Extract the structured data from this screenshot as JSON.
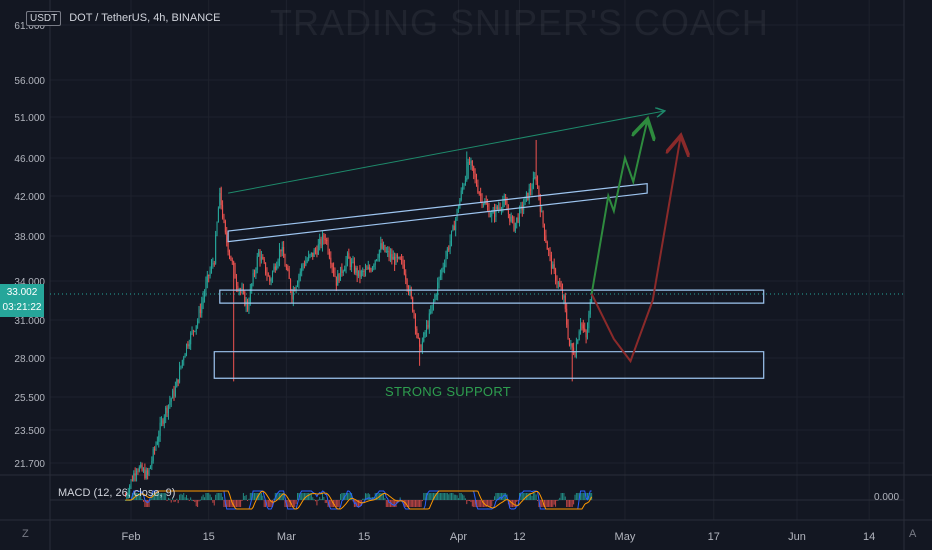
{
  "header": {
    "currency_badge": "USDT",
    "symbol": "DOT / TetherUS, 4h, BINANCE"
  },
  "watermark": "TRADING SNIPER'S COACH",
  "price_tag": {
    "price": "33.002",
    "countdown": "03:21:22"
  },
  "annotation": "STRONG SUPPORT",
  "macd": {
    "label": "MACD (12, 26, close, 9)",
    "value": "0.000"
  },
  "corner": {
    "left": "Z",
    "right": "A"
  },
  "colors": {
    "up": "#26a69a",
    "down": "#ef5350",
    "box": "#9ec5f0",
    "trend": "#1e8a6b",
    "green_arrow": "#2e8b3e",
    "red_arrow": "#8b2a2a",
    "macd_line": "#2962ff",
    "signal_line": "#ff9800"
  },
  "chart_data": {
    "type": "candlestick",
    "ylim": [
      19.5,
      62.0
    ],
    "yticks": [
      61.0,
      56.0,
      51.0,
      46.0,
      42.0,
      38.0,
      34.0,
      31.0,
      28.0,
      25.5,
      23.5,
      21.7
    ],
    "yticks_text": [
      "61.000",
      "56.000",
      "51.000",
      "46.000",
      "42.000",
      "38.000",
      "34.000",
      "31.000",
      "28.000",
      "25.500",
      "23.500",
      "21.700"
    ],
    "x_range_days": [
      0,
      136
    ],
    "xticks": [
      {
        "label": "Feb",
        "day": 0
      },
      {
        "label": "15",
        "day": 14
      },
      {
        "label": "Mar",
        "day": 28
      },
      {
        "label": "15",
        "day": 42
      },
      {
        "label": "Apr",
        "day": 59
      },
      {
        "label": "12",
        "day": 70
      },
      {
        "label": "May",
        "day": 89
      },
      {
        "label": "17",
        "day": 105
      },
      {
        "label": "Jun",
        "day": 120
      },
      {
        "label": "14",
        "day": 133
      }
    ],
    "price_anchors": [
      [
        -1,
        19.9
      ],
      [
        1,
        21.5
      ],
      [
        3,
        21.0
      ],
      [
        6,
        24.5
      ],
      [
        8,
        26.0
      ],
      [
        10,
        29.0
      ],
      [
        12,
        31.0
      ],
      [
        14,
        34.5
      ],
      [
        15,
        36.0
      ],
      [
        16,
        42.3
      ],
      [
        17,
        38.0
      ],
      [
        18,
        36.0
      ],
      [
        19,
        34.0
      ],
      [
        21,
        32.0
      ],
      [
        23,
        36.5
      ],
      [
        25,
        34.0
      ],
      [
        27,
        37.0
      ],
      [
        29,
        33.0
      ],
      [
        31,
        35.5
      ],
      [
        33,
        36.5
      ],
      [
        35,
        38.0
      ],
      [
        37,
        34.0
      ],
      [
        39,
        36.0
      ],
      [
        41,
        34.5
      ],
      [
        43,
        35.0
      ],
      [
        45,
        37.0
      ],
      [
        47,
        36.0
      ],
      [
        49,
        35.5
      ],
      [
        51,
        31.5
      ],
      [
        52,
        28.5
      ],
      [
        54,
        31.5
      ],
      [
        56,
        35.0
      ],
      [
        58,
        38.5
      ],
      [
        60,
        43.5
      ],
      [
        61,
        45.5
      ],
      [
        63,
        42.0
      ],
      [
        65,
        40.0
      ],
      [
        67,
        41.5
      ],
      [
        69,
        39.0
      ],
      [
        71,
        41.5
      ],
      [
        73,
        44.0
      ],
      [
        74,
        40.0
      ],
      [
        75,
        37.0
      ],
      [
        76,
        35.0
      ],
      [
        78,
        32.5
      ],
      [
        79,
        29.0
      ],
      [
        80,
        28.5
      ],
      [
        81,
        31.0
      ],
      [
        82,
        29.5
      ],
      [
        83,
        33.0
      ]
    ],
    "zones": [
      {
        "name": "upper-channel",
        "points": [
          [
            17.5,
            37.5
          ],
          [
            93,
            42.3
          ],
          [
            93,
            43.3
          ],
          [
            17.5,
            38.5
          ]
        ]
      },
      {
        "name": "mid-resistance",
        "points": [
          [
            16,
            33.3
          ],
          [
            114,
            33.3
          ],
          [
            114,
            32.3
          ],
          [
            16,
            32.3
          ]
        ]
      },
      {
        "name": "strong-support",
        "points": [
          [
            15,
            28.5
          ],
          [
            114,
            28.5
          ],
          [
            114,
            26.7
          ],
          [
            15,
            26.7
          ]
        ]
      }
    ],
    "trendline": [
      [
        17.5,
        42.3
      ],
      [
        96,
        51.8
      ]
    ],
    "green_path": [
      [
        83,
        33.0
      ],
      [
        86,
        42.0
      ],
      [
        87,
        40.5
      ],
      [
        89,
        46.0
      ],
      [
        90.5,
        43.5
      ],
      [
        93,
        50.5
      ]
    ],
    "red_path": [
      [
        83,
        33.0
      ],
      [
        87,
        29.5
      ],
      [
        90,
        27.8
      ],
      [
        94,
        32.5
      ],
      [
        99,
        48.5
      ]
    ],
    "current_price": 33.002,
    "macd_range": [
      -1.0,
      1.0
    ]
  }
}
